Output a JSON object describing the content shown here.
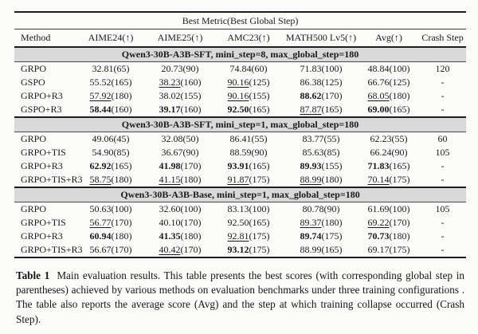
{
  "table": {
    "spanner": "Best Metric(Best Global Step)",
    "columns": [
      "Method",
      "AIME24(↑)",
      "AIME25(↑)",
      "AMC23(↑)",
      "MATH500 Lv5(↑)",
      "Avg(↑)",
      "Crash Step"
    ],
    "band_color": "#d9d9d9",
    "rule_color": "#1c1c1c",
    "sections": [
      {
        "title": "Qwen3-30B-A3B-SFT, mini_step=8, max_global_step=180",
        "rows": [
          {
            "method": "GRPO",
            "metrics": [
              {
                "s": "32.81",
                "g": "(65)",
                "f": "p"
              },
              {
                "s": "20.73",
                "g": "(90)",
                "f": "p"
              },
              {
                "s": "74.84",
                "g": "(60)",
                "f": "p"
              },
              {
                "s": "71.83",
                "g": "(100)",
                "f": "p"
              },
              {
                "s": "48.84",
                "g": "(100)",
                "f": "p"
              }
            ],
            "crash": "120"
          },
          {
            "method": "GSPO",
            "metrics": [
              {
                "s": "55.52",
                "g": "(165)",
                "f": "p"
              },
              {
                "s": "38.23",
                "g": "(160)",
                "f": "u"
              },
              {
                "s": "90.16",
                "g": "(125)",
                "f": "u"
              },
              {
                "s": "86.38",
                "g": "(125)",
                "f": "p"
              },
              {
                "s": "66.76",
                "g": "(125)",
                "f": "p"
              }
            ],
            "crash": "-"
          },
          {
            "method": "GRPO+R3",
            "metrics": [
              {
                "s": "57.92",
                "g": "(180)",
                "f": "u"
              },
              {
                "s": "38.02",
                "g": "(155)",
                "f": "p"
              },
              {
                "s": "90.16",
                "g": "(155)",
                "f": "u"
              },
              {
                "s": "88.62",
                "g": "(170)",
                "f": "b"
              },
              {
                "s": "68.05",
                "g": "(180)",
                "f": "u"
              }
            ],
            "crash": "-"
          },
          {
            "method": "GSPO+R3",
            "metrics": [
              {
                "s": "58.44",
                "g": "(160)",
                "f": "b"
              },
              {
                "s": "39.17",
                "g": "(160)",
                "f": "b"
              },
              {
                "s": "92.50",
                "g": "(165)",
                "f": "b"
              },
              {
                "s": "87.87",
                "g": "(165)",
                "f": "u"
              },
              {
                "s": "69.00",
                "g": "(165)",
                "f": "b"
              }
            ],
            "crash": "-"
          }
        ]
      },
      {
        "title": "Qwen3-30B-A3B-SFT, mini_step=1, max_global_step=180",
        "rows": [
          {
            "method": "GRPO",
            "metrics": [
              {
                "s": "49.06",
                "g": "(45)",
                "f": "p"
              },
              {
                "s": "32.08",
                "g": "(50)",
                "f": "p"
              },
              {
                "s": "86.41",
                "g": "(55)",
                "f": "p"
              },
              {
                "s": "83.77",
                "g": "(55)",
                "f": "p"
              },
              {
                "s": "62.23",
                "g": "(55)",
                "f": "p"
              }
            ],
            "crash": "60"
          },
          {
            "method": "GRPO+TIS",
            "metrics": [
              {
                "s": "54.90",
                "g": "(85)",
                "f": "p"
              },
              {
                "s": "36.67",
                "g": "(90)",
                "f": "p"
              },
              {
                "s": "88.59",
                "g": "(90)",
                "f": "p"
              },
              {
                "s": "85.63",
                "g": "(85)",
                "f": "p"
              },
              {
                "s": "66.24",
                "g": "(90)",
                "f": "p"
              }
            ],
            "crash": "105"
          },
          {
            "method": "GRPO+R3",
            "metrics": [
              {
                "s": "62.92",
                "g": "(165)",
                "f": "b"
              },
              {
                "s": "41.98",
                "g": "(170)",
                "f": "b"
              },
              {
                "s": "93.91",
                "g": "(165)",
                "f": "b"
              },
              {
                "s": "89.93",
                "g": "(155)",
                "f": "b"
              },
              {
                "s": "71.83",
                "g": "(165)",
                "f": "b"
              }
            ],
            "crash": "-"
          },
          {
            "method": "GRPO+TIS+R3",
            "metrics": [
              {
                "s": "58.75",
                "g": "(180)",
                "f": "u"
              },
              {
                "s": "41.15",
                "g": "(180)",
                "f": "u"
              },
              {
                "s": "91.87",
                "g": "(175)",
                "f": "u"
              },
              {
                "s": "88.99",
                "g": "(180)",
                "f": "u"
              },
              {
                "s": "70.14",
                "g": "(175)",
                "f": "u"
              }
            ],
            "crash": "-"
          }
        ]
      },
      {
        "title": "Qwen3-30B-A3B-Base, mini_step=1, max_global_step=180",
        "rows": [
          {
            "method": "GRPO",
            "metrics": [
              {
                "s": "50.63",
                "g": "(100)",
                "f": "p"
              },
              {
                "s": "32.60",
                "g": "(100)",
                "f": "p"
              },
              {
                "s": "83.13",
                "g": "(100)",
                "f": "p"
              },
              {
                "s": "80.78",
                "g": "(90)",
                "f": "p"
              },
              {
                "s": "61.69",
                "g": "(100)",
                "f": "p"
              }
            ],
            "crash": "105"
          },
          {
            "method": "GRPO+TIS",
            "metrics": [
              {
                "s": "56.77",
                "g": "(170)",
                "f": "u"
              },
              {
                "s": "40.10",
                "g": "(170)",
                "f": "p"
              },
              {
                "s": "92.50",
                "g": "(165)",
                "f": "p"
              },
              {
                "s": "89.37",
                "g": "(180)",
                "f": "u"
              },
              {
                "s": "69.22",
                "g": "(170)",
                "f": "u"
              }
            ],
            "crash": "-"
          },
          {
            "method": "GRPO+R3",
            "metrics": [
              {
                "s": "60.94",
                "g": "(180)",
                "f": "b"
              },
              {
                "s": "41.35",
                "g": "(180)",
                "f": "b"
              },
              {
                "s": "92.81",
                "g": "(175)",
                "f": "u"
              },
              {
                "s": "89.74",
                "g": "(175)",
                "f": "b"
              },
              {
                "s": "70.73",
                "g": "(180)",
                "f": "b"
              }
            ],
            "crash": "-"
          },
          {
            "method": "GRPO+TIS+R3",
            "metrics": [
              {
                "s": "56.67",
                "g": "(170)",
                "f": "p"
              },
              {
                "s": "40.42",
                "g": "(170)",
                "f": "u"
              },
              {
                "s": "93.12",
                "g": "(175)",
                "f": "b"
              },
              {
                "s": "88.99",
                "g": "(165)",
                "f": "p"
              },
              {
                "s": "69.17",
                "g": "(175)",
                "f": "p"
              }
            ],
            "crash": "-"
          }
        ]
      }
    ]
  },
  "caption": {
    "label": "Table 1",
    "text": "Main evaluation results. This table presents the best scores (with corresponding global step in parentheses) achieved by various methods on evaluation benchmarks under three training configurations . The table also reports the average score (Avg) and the step at which training collapse occurred (Crash Step)."
  }
}
